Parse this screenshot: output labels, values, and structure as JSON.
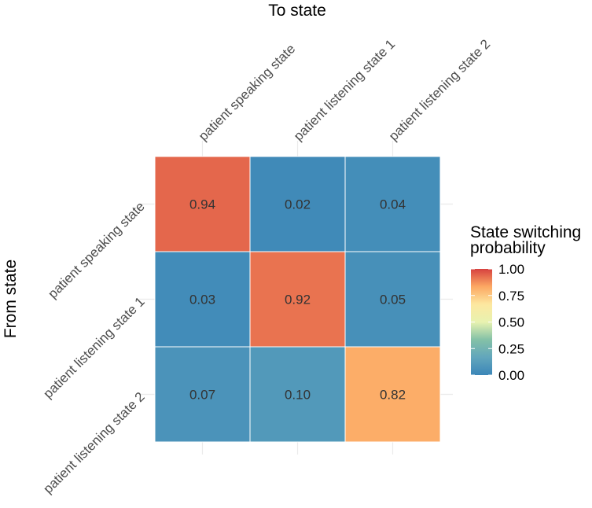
{
  "chart_data": {
    "type": "heatmap",
    "title": "",
    "xlabel": "To state",
    "ylabel": "From state",
    "x_categories": [
      "patient speaking state",
      "patient listening state 1",
      "patient listening state 2"
    ],
    "y_categories": [
      "patient speaking state",
      "patient listening state 1",
      "patient listening state 2"
    ],
    "values": [
      [
        0.94,
        0.02,
        0.04
      ],
      [
        0.03,
        0.92,
        0.05
      ],
      [
        0.07,
        0.1,
        0.82
      ]
    ],
    "cell_labels": [
      [
        "0.94",
        "0.02",
        "0.04"
      ],
      [
        "0.03",
        "0.92",
        "0.05"
      ],
      [
        "0.07",
        "0.10",
        "0.82"
      ]
    ],
    "x_axis_position": "top",
    "grid": true,
    "legend": {
      "title_lines": [
        "State switching",
        "probability"
      ],
      "range": [
        0,
        1
      ],
      "ticks": [
        "1.00",
        "0.75",
        "0.50",
        "0.25",
        "0.00"
      ],
      "tick_values": [
        1.0,
        0.75,
        0.5,
        0.25,
        0.0
      ],
      "placement": "right",
      "colors": [
        "#3B86B8",
        "#62A6BC",
        "#84C1A7",
        "#E8F2B0",
        "#FDE8A0",
        "#FCA863",
        "#D7423F"
      ]
    }
  }
}
